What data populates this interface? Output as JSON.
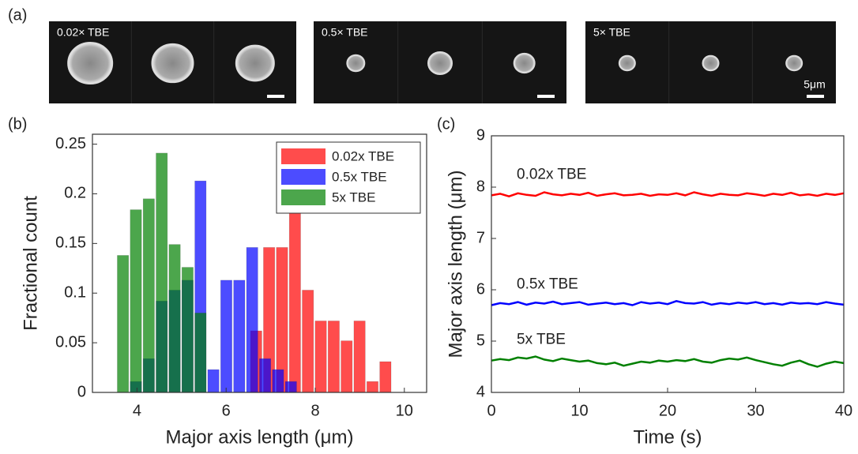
{
  "images_panel": {
    "label": "(a)",
    "groups": [
      {
        "label": "0.02× TBE"
      },
      {
        "label": "0.5× TBE"
      },
      {
        "label": "5× TBE"
      }
    ],
    "scale_bar": "5μm"
  },
  "chart_data": [
    {
      "type": "histogram",
      "panel_label": "(b)",
      "xlabel": "Major axis length (μm)",
      "ylabel": "Fractional count",
      "xlim": [
        3,
        10.5
      ],
      "xticks": [
        4,
        6,
        8,
        10
      ],
      "ylim": [
        0,
        0.26
      ],
      "yticks": [
        0,
        0.05,
        0.1,
        0.15,
        0.2,
        0.25
      ],
      "legend": "upper right",
      "series": [
        {
          "name": "0.02x TBE",
          "color": "#ff0000",
          "bins": [
            6.53,
            6.82,
            7.11,
            7.4,
            7.69,
            7.98,
            8.27,
            8.56,
            8.85,
            9.14,
            9.43,
            9.72
          ],
          "values": [
            0.062,
            0.146,
            0.146,
            0.228,
            0.103,
            0.072,
            0.072,
            0.052,
            0.072,
            0.011,
            0.031
          ]
        },
        {
          "name": "0.5x TBE",
          "color": "#0000ff",
          "bins": [
            3.83,
            4.12,
            4.41,
            4.7,
            4.99,
            5.28,
            5.57,
            5.86,
            6.15,
            6.44,
            6.73,
            7.02,
            7.31,
            7.6
          ],
          "values": [
            0.011,
            0.034,
            0.092,
            0.103,
            0.113,
            0.213,
            0.023,
            0.113,
            0.113,
            0.146,
            0.034,
            0.023,
            0.011
          ]
        },
        {
          "name": "5x TBE",
          "color": "#008000",
          "bins": [
            3.54,
            3.83,
            4.12,
            4.41,
            4.7,
            4.99,
            5.28,
            5.57
          ],
          "values": [
            0.138,
            0.184,
            0.195,
            0.241,
            0.149,
            0.126,
            0.08
          ]
        }
      ]
    },
    {
      "type": "line",
      "panel_label": "(c)",
      "xlabel": "Time (s)",
      "ylabel": "Major axis length (μm)",
      "xlim": [
        0,
        40
      ],
      "xticks": [
        0,
        10,
        20,
        30,
        40
      ],
      "ylim": [
        4,
        9
      ],
      "yticks": [
        4,
        5,
        6,
        7,
        8,
        9
      ],
      "x": [
        0,
        1,
        2,
        3,
        4,
        5,
        6,
        7,
        8,
        9,
        10,
        11,
        12,
        13,
        14,
        15,
        16,
        17,
        18,
        19,
        20,
        21,
        22,
        23,
        24,
        25,
        26,
        27,
        28,
        29,
        30,
        31,
        32,
        33,
        34,
        35,
        36,
        37,
        38,
        39,
        40
      ],
      "series": [
        {
          "name": "0.02x TBE",
          "color": "#ff0000",
          "values": [
            7.84,
            7.87,
            7.82,
            7.88,
            7.85,
            7.83,
            7.9,
            7.86,
            7.84,
            7.87,
            7.85,
            7.89,
            7.83,
            7.86,
            7.88,
            7.84,
            7.85,
            7.87,
            7.83,
            7.86,
            7.85,
            7.88,
            7.84,
            7.9,
            7.86,
            7.83,
            7.87,
            7.85,
            7.84,
            7.88,
            7.86,
            7.83,
            7.87,
            7.85,
            7.89,
            7.84,
            7.86,
            7.83,
            7.87,
            7.85,
            7.88
          ]
        },
        {
          "name": "0.5x TBE",
          "color": "#0000ff",
          "values": [
            5.7,
            5.74,
            5.72,
            5.76,
            5.71,
            5.75,
            5.73,
            5.77,
            5.72,
            5.74,
            5.76,
            5.71,
            5.73,
            5.75,
            5.72,
            5.74,
            5.7,
            5.76,
            5.73,
            5.75,
            5.72,
            5.78,
            5.74,
            5.73,
            5.76,
            5.71,
            5.74,
            5.72,
            5.75,
            5.73,
            5.76,
            5.72,
            5.74,
            5.71,
            5.75,
            5.73,
            5.74,
            5.72,
            5.76,
            5.73,
            5.71
          ]
        },
        {
          "name": "5x TBE",
          "color": "#008000",
          "values": [
            4.62,
            4.65,
            4.63,
            4.68,
            4.66,
            4.7,
            4.64,
            4.61,
            4.66,
            4.63,
            4.6,
            4.62,
            4.57,
            4.55,
            4.58,
            4.52,
            4.56,
            4.6,
            4.58,
            4.62,
            4.6,
            4.63,
            4.61,
            4.65,
            4.6,
            4.58,
            4.63,
            4.66,
            4.64,
            4.68,
            4.63,
            4.59,
            4.55,
            4.52,
            4.58,
            4.62,
            4.55,
            4.5,
            4.56,
            4.6,
            4.57
          ]
        }
      ]
    }
  ]
}
